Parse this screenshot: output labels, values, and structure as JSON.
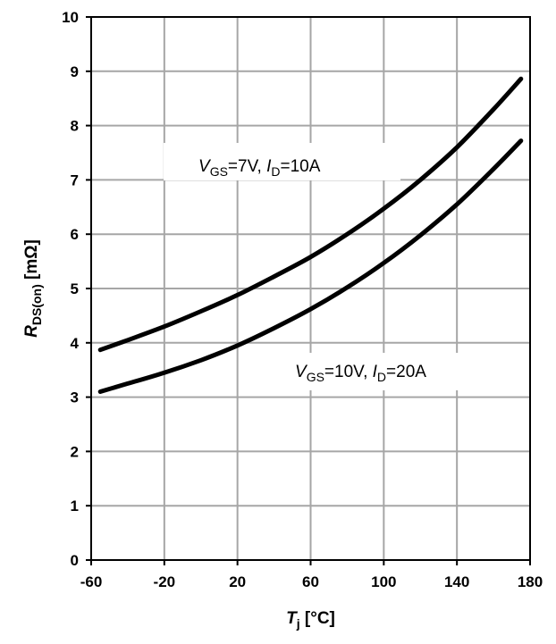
{
  "chart_data": {
    "type": "line",
    "title": "",
    "xlabel": {
      "main": "T",
      "sub": "j",
      "unit": " [°C]"
    },
    "ylabel": {
      "main": "R",
      "sub": "DS(on)",
      "unit": " [mΩ]"
    },
    "xlim": [
      -60,
      180
    ],
    "ylim": [
      0,
      10
    ],
    "xticks": [
      -60,
      -20,
      20,
      60,
      100,
      140,
      180
    ],
    "yticks": [
      0,
      1,
      2,
      3,
      4,
      5,
      6,
      7,
      8,
      9,
      10
    ],
    "grid": true,
    "series": [
      {
        "x": [
          -55,
          -40,
          -20,
          0,
          20,
          40,
          60,
          80,
          100,
          120,
          140,
          160,
          175
        ],
        "y": [
          3.87,
          4.05,
          4.3,
          4.58,
          4.88,
          5.22,
          5.58,
          6.0,
          6.47,
          7.0,
          7.6,
          8.3,
          8.86
        ]
      },
      {
        "x": [
          -55,
          -40,
          -20,
          0,
          20,
          40,
          60,
          80,
          100,
          120,
          140,
          160,
          175
        ],
        "y": [
          3.1,
          3.25,
          3.45,
          3.68,
          3.95,
          4.27,
          4.62,
          5.02,
          5.47,
          5.98,
          6.55,
          7.2,
          7.72
        ]
      }
    ],
    "annotations": [
      {
        "parts": [
          {
            "t": "V",
            "style": "italic"
          },
          {
            "t": "GS",
            "style": "sub"
          },
          {
            "t": "=7V, ",
            "style": "normal"
          },
          {
            "t": "I",
            "style": "italic"
          },
          {
            "t": "D",
            "style": "sub"
          },
          {
            "t": "=10A",
            "style": "normal"
          }
        ]
      },
      {
        "parts": [
          {
            "t": "V",
            "style": "italic"
          },
          {
            "t": "GS",
            "style": "sub"
          },
          {
            "t": "=10V, ",
            "style": "normal"
          },
          {
            "t": "I",
            "style": "italic"
          },
          {
            "t": "D",
            "style": "sub"
          },
          {
            "t": "=20A",
            "style": "normal"
          }
        ]
      }
    ]
  }
}
